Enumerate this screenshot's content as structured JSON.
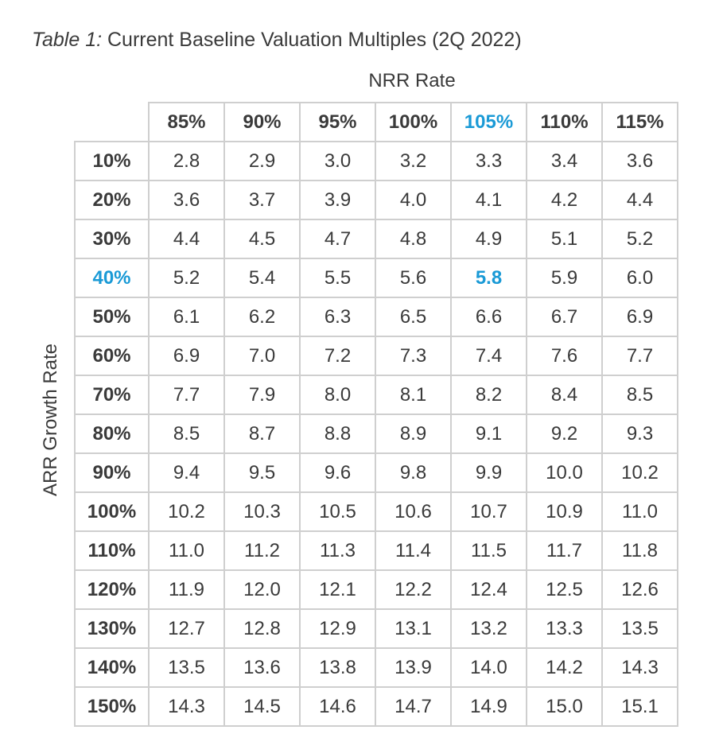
{
  "title": {
    "lead": "Table 1:",
    "text": "Current Baseline Valuation Multiples (2Q 2022)"
  },
  "accent_color": "#1a9ad6",
  "chart_data": {
    "type": "table",
    "title": "Table 1: Current Baseline Valuation Multiples (2Q 2022)",
    "column_axis_label": "NRR Rate",
    "row_axis_label": "ARR Growth Rate",
    "columns": [
      "85%",
      "90%",
      "95%",
      "100%",
      "105%",
      "110%",
      "115%"
    ],
    "rows": [
      "10%",
      "20%",
      "30%",
      "40%",
      "50%",
      "60%",
      "70%",
      "80%",
      "90%",
      "100%",
      "110%",
      "120%",
      "130%",
      "140%",
      "150%"
    ],
    "values": [
      [
        "2.8",
        "2.9",
        "3.0",
        "3.2",
        "3.3",
        "3.4",
        "3.6"
      ],
      [
        "3.6",
        "3.7",
        "3.9",
        "4.0",
        "4.1",
        "4.2",
        "4.4"
      ],
      [
        "4.4",
        "4.5",
        "4.7",
        "4.8",
        "4.9",
        "5.1",
        "5.2"
      ],
      [
        "5.2",
        "5.4",
        "5.5",
        "5.6",
        "5.8",
        "5.9",
        "6.0"
      ],
      [
        "6.1",
        "6.2",
        "6.3",
        "6.5",
        "6.6",
        "6.7",
        "6.9"
      ],
      [
        "6.9",
        "7.0",
        "7.2",
        "7.3",
        "7.4",
        "7.6",
        "7.7"
      ],
      [
        "7.7",
        "7.9",
        "8.0",
        "8.1",
        "8.2",
        "8.4",
        "8.5"
      ],
      [
        "8.5",
        "8.7",
        "8.8",
        "8.9",
        "9.1",
        "9.2",
        "9.3"
      ],
      [
        "9.4",
        "9.5",
        "9.6",
        "9.8",
        "9.9",
        "10.0",
        "10.2"
      ],
      [
        "10.2",
        "10.3",
        "10.5",
        "10.6",
        "10.7",
        "10.9",
        "11.0"
      ],
      [
        "11.0",
        "11.2",
        "11.3",
        "11.4",
        "11.5",
        "11.7",
        "11.8"
      ],
      [
        "11.9",
        "12.0",
        "12.1",
        "12.2",
        "12.4",
        "12.5",
        "12.6"
      ],
      [
        "12.7",
        "12.8",
        "12.9",
        "13.1",
        "13.2",
        "13.3",
        "13.5"
      ],
      [
        "13.5",
        "13.6",
        "13.8",
        "13.9",
        "14.0",
        "14.2",
        "14.3"
      ],
      [
        "14.3",
        "14.5",
        "14.6",
        "14.7",
        "14.9",
        "15.0",
        "15.1"
      ]
    ],
    "highlight": {
      "column": "105%",
      "row": "40%",
      "value": "5.8"
    }
  }
}
